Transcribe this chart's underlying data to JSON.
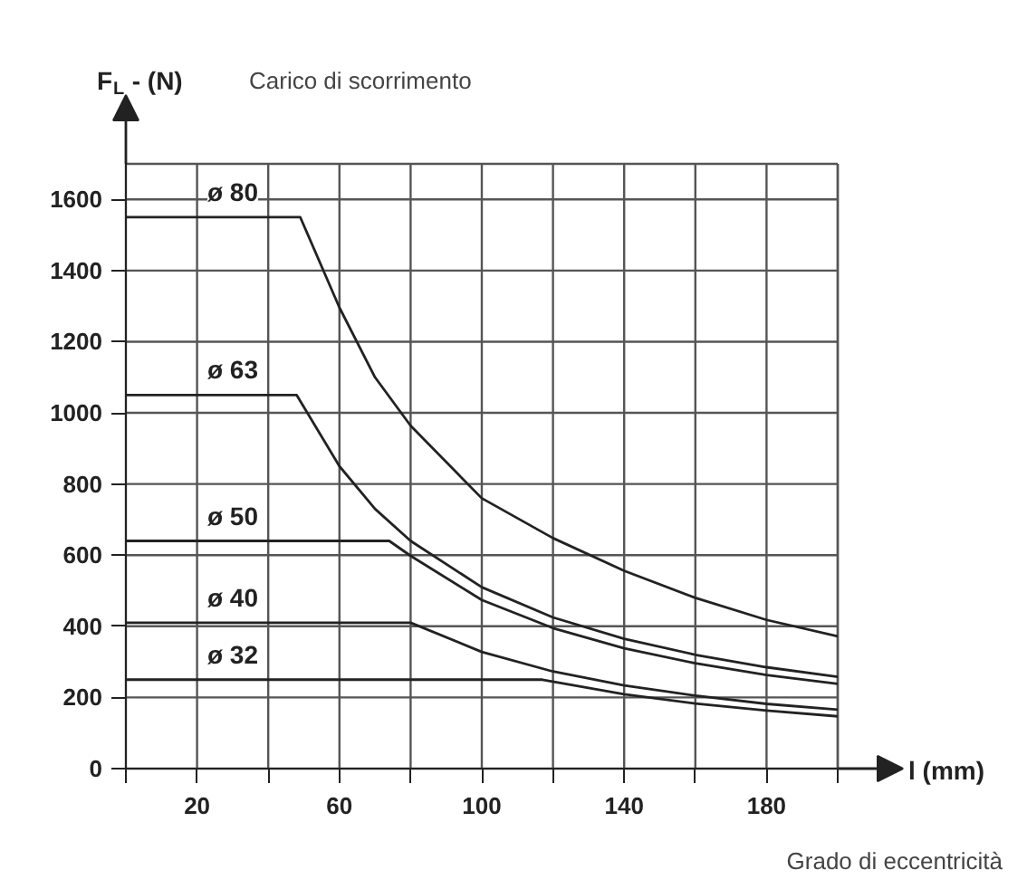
{
  "chart_data": {
    "type": "line",
    "title": "Carico di scorrimento",
    "xlabel": "l (mm)",
    "ylabel": "F$_{L}$ - (N)",
    "annotations": [
      "Grado di eccentricità"
    ],
    "xlim": [
      0,
      200
    ],
    "ylim": [
      0,
      1700
    ],
    "xticks": [
      {
        "value": 0,
        "label": null
      },
      20,
      {
        "value": 40,
        "label": null
      },
      60,
      {
        "value": 80,
        "label": null
      },
      100,
      {
        "value": 120,
        "label": null
      },
      140,
      {
        "value": 160,
        "label": null
      },
      180,
      {
        "value": 200,
        "label": null
      }
    ],
    "yticks": [
      0,
      200,
      400,
      600,
      800,
      1000,
      1200,
      1400,
      1600
    ],
    "grid": true,
    "marker": "none",
    "line_style": "solid",
    "series": [
      {
        "name": "ø 80",
        "color": "#222222",
        "x": [
          0,
          49,
          60,
          70,
          80,
          100,
          120,
          140,
          160,
          180,
          200
        ],
        "values": [
          1550,
          1550,
          1296,
          1100,
          964,
          760,
          648,
          556,
          480,
          418,
          372
        ]
      },
      {
        "name": "ø 63",
        "color": "#222222",
        "x": [
          0,
          48,
          60,
          70,
          80,
          100,
          120,
          140,
          160,
          180,
          200
        ],
        "values": [
          1050,
          1050,
          850,
          730,
          640,
          510,
          425,
          365,
          320,
          285,
          258
        ]
      },
      {
        "name": "ø 50",
        "color": "#222222",
        "x": [
          0,
          74,
          80,
          100,
          120,
          140,
          160,
          180,
          200
        ],
        "values": [
          640,
          640,
          598,
          474,
          395,
          338,
          296,
          263,
          238
        ]
      },
      {
        "name": "ø 40",
        "color": "#222222",
        "x": [
          0,
          80,
          100,
          120,
          140,
          160,
          180,
          200
        ],
        "values": [
          410,
          410,
          328,
          273,
          234,
          205,
          182,
          166
        ]
      },
      {
        "name": "ø 32",
        "color": "#222222",
        "x": [
          0,
          117,
          140,
          160,
          180,
          200
        ],
        "values": [
          250,
          250,
          209,
          183,
          163,
          147
        ]
      }
    ]
  }
}
